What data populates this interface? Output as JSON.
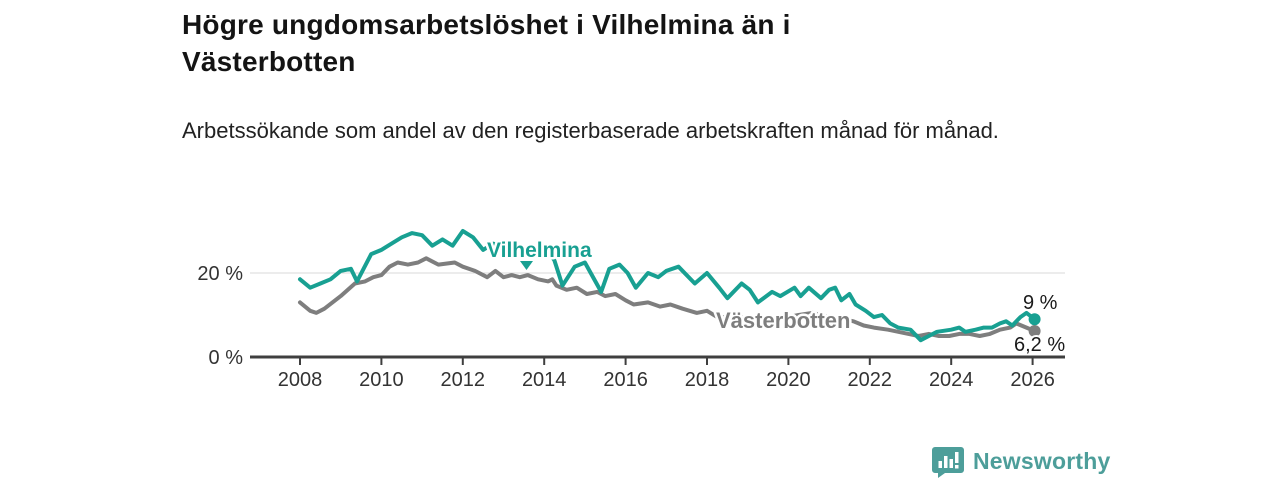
{
  "header": {
    "title": "Högre ungdomsarbetslöshet i Vilhelmina än i Västerbotten",
    "subtitle": "Arbetssökande som andel av den registerbaserade arbetskraften månad för månad."
  },
  "chart_data": {
    "type": "line",
    "title": "Högre ungdomsarbetslöshet i Vilhelmina än i Västerbotten",
    "xlabel": "",
    "ylabel": "Arbetssökande som andel av den registerbaserade arbetskraften (%)",
    "unit": "%",
    "xlim": [
      2006.8,
      2026.7
    ],
    "ylim": [
      0,
      35
    ],
    "grid": "y-only-at-20",
    "legend_position": "inline-labels",
    "x_ticks": [
      2008,
      2010,
      2012,
      2014,
      2016,
      2018,
      2020,
      2022,
      2024,
      2026
    ],
    "y_ticks": [
      {
        "value": 0,
        "label": "0 %"
      },
      {
        "value": 20,
        "label": "20 %"
      }
    ],
    "series": [
      {
        "name": "Vilhelmina",
        "color": "#18a092",
        "end_label": "9 %",
        "end_value": 9,
        "points": [
          [
            2008.0,
            18.5
          ],
          [
            2008.25,
            16.5
          ],
          [
            2008.5,
            17.5
          ],
          [
            2008.75,
            18.5
          ],
          [
            2009.0,
            20.5
          ],
          [
            2009.25,
            21
          ],
          [
            2009.4,
            18
          ],
          [
            2009.75,
            24.5
          ],
          [
            2010.0,
            25.5
          ],
          [
            2010.25,
            27
          ],
          [
            2010.5,
            28.5
          ],
          [
            2010.75,
            29.5
          ],
          [
            2011.0,
            29
          ],
          [
            2011.25,
            26.5
          ],
          [
            2011.5,
            28
          ],
          [
            2011.75,
            26.5
          ],
          [
            2012.0,
            30
          ],
          [
            2012.25,
            28.5
          ],
          [
            2012.5,
            25.5
          ],
          [
            2012.75,
            27
          ],
          [
            2013.0,
            26
          ],
          [
            2013.25,
            25
          ],
          [
            2013.5,
            24.5
          ],
          [
            2013.75,
            25
          ],
          [
            2014.0,
            26.5
          ],
          [
            2014.25,
            23
          ],
          [
            2014.45,
            17
          ],
          [
            2014.75,
            21.5
          ],
          [
            2015.0,
            22.5
          ],
          [
            2015.4,
            15.5
          ],
          [
            2015.6,
            21
          ],
          [
            2015.85,
            22
          ],
          [
            2016.05,
            20
          ],
          [
            2016.25,
            16.5
          ],
          [
            2016.55,
            20
          ],
          [
            2016.8,
            19
          ],
          [
            2017.0,
            20.5
          ],
          [
            2017.3,
            21.5
          ],
          [
            2017.7,
            17.5
          ],
          [
            2018.0,
            20
          ],
          [
            2018.3,
            16.5
          ],
          [
            2018.5,
            14
          ],
          [
            2018.85,
            17.5
          ],
          [
            2019.05,
            16
          ],
          [
            2019.25,
            13
          ],
          [
            2019.6,
            15.5
          ],
          [
            2019.8,
            14.5
          ],
          [
            2020.15,
            16.5
          ],
          [
            2020.3,
            14.5
          ],
          [
            2020.5,
            16.5
          ],
          [
            2020.8,
            14
          ],
          [
            2021.0,
            16
          ],
          [
            2021.15,
            16.5
          ],
          [
            2021.3,
            13.5
          ],
          [
            2021.5,
            15
          ],
          [
            2021.65,
            12.5
          ],
          [
            2021.9,
            11
          ],
          [
            2022.1,
            9.5
          ],
          [
            2022.3,
            10
          ],
          [
            2022.5,
            8
          ],
          [
            2022.7,
            7
          ],
          [
            2023.0,
            6.5
          ],
          [
            2023.25,
            4
          ],
          [
            2023.45,
            5
          ],
          [
            2023.65,
            6
          ],
          [
            2024.0,
            6.5
          ],
          [
            2024.2,
            7
          ],
          [
            2024.35,
            6
          ],
          [
            2024.6,
            6.5
          ],
          [
            2024.8,
            7
          ],
          [
            2025.0,
            7
          ],
          [
            2025.2,
            8
          ],
          [
            2025.35,
            8.5
          ],
          [
            2025.5,
            7.5
          ],
          [
            2025.7,
            9.5
          ],
          [
            2025.85,
            10.5
          ],
          [
            2026.05,
            9
          ]
        ]
      },
      {
        "name": "Västerbotten",
        "color": "#7e7e7e",
        "end_label": "6,2 %",
        "end_value": 6.2,
        "points": [
          [
            2008.0,
            13
          ],
          [
            2008.25,
            11
          ],
          [
            2008.4,
            10.5
          ],
          [
            2008.6,
            11.5
          ],
          [
            2009.0,
            14.5
          ],
          [
            2009.35,
            17.5
          ],
          [
            2009.6,
            18
          ],
          [
            2009.8,
            19
          ],
          [
            2010.0,
            19.5
          ],
          [
            2010.2,
            21.5
          ],
          [
            2010.4,
            22.5
          ],
          [
            2010.65,
            22
          ],
          [
            2010.9,
            22.5
          ],
          [
            2011.1,
            23.5
          ],
          [
            2011.4,
            22
          ],
          [
            2011.8,
            22.5
          ],
          [
            2012.0,
            21.5
          ],
          [
            2012.3,
            20.5
          ],
          [
            2012.6,
            19
          ],
          [
            2012.8,
            20.5
          ],
          [
            2013.0,
            19
          ],
          [
            2013.2,
            19.5
          ],
          [
            2013.4,
            19
          ],
          [
            2013.6,
            19.5
          ],
          [
            2013.85,
            18.5
          ],
          [
            2014.1,
            18
          ],
          [
            2014.2,
            18.5
          ],
          [
            2014.3,
            17
          ],
          [
            2014.55,
            16
          ],
          [
            2014.8,
            16.5
          ],
          [
            2015.05,
            15
          ],
          [
            2015.3,
            15.5
          ],
          [
            2015.5,
            14.5
          ],
          [
            2015.75,
            15
          ],
          [
            2016.0,
            13.5
          ],
          [
            2016.2,
            12.5
          ],
          [
            2016.55,
            13
          ],
          [
            2016.85,
            12
          ],
          [
            2017.1,
            12.5
          ],
          [
            2017.4,
            11.5
          ],
          [
            2017.75,
            10.5
          ],
          [
            2018.0,
            11
          ],
          [
            2018.25,
            9.5
          ],
          [
            2018.75,
            9.5
          ],
          [
            2019.25,
            9
          ],
          [
            2019.75,
            9
          ],
          [
            2020.25,
            10
          ],
          [
            2020.6,
            10.5
          ],
          [
            2021.0,
            9.5
          ],
          [
            2021.35,
            9
          ],
          [
            2021.6,
            8.5
          ],
          [
            2021.85,
            7.5
          ],
          [
            2022.1,
            7
          ],
          [
            2022.45,
            6.5
          ],
          [
            2022.7,
            6
          ],
          [
            2022.95,
            5.5
          ],
          [
            2023.2,
            5
          ],
          [
            2023.45,
            5.5
          ],
          [
            2023.7,
            5
          ],
          [
            2023.95,
            5
          ],
          [
            2024.2,
            5.5
          ],
          [
            2024.45,
            5.5
          ],
          [
            2024.7,
            5
          ],
          [
            2024.95,
            5.5
          ],
          [
            2025.2,
            6.5
          ],
          [
            2025.45,
            7
          ],
          [
            2025.6,
            8
          ],
          [
            2026.05,
            6.2
          ]
        ]
      }
    ]
  },
  "colors": {
    "accent_teal": "#18a092",
    "logo_teal": "#4d9e9a",
    "series_gray": "#7e7e7e",
    "gridline": "#d9d9d9",
    "axis": "#3f3f3f",
    "title_text": "#141414"
  },
  "footer": {
    "brand": "Newsworthy"
  }
}
